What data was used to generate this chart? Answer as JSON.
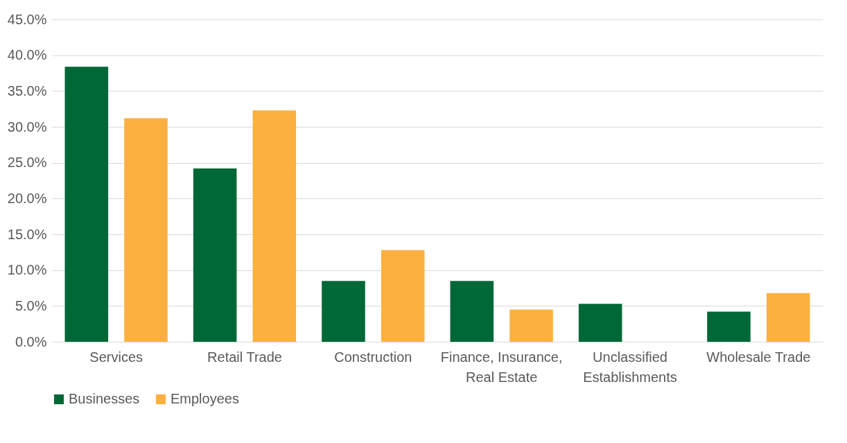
{
  "chart_data": {
    "type": "bar",
    "categories": [
      "Services",
      "Retail Trade",
      "Construction",
      "Finance, Insurance, Real Estate",
      "Unclassified Establishments",
      "Wholesale Trade"
    ],
    "series": [
      {
        "name": "Businesses",
        "color": "#006837",
        "values": [
          38.4,
          24.2,
          8.5,
          8.5,
          5.3,
          4.2
        ]
      },
      {
        "name": "Employees",
        "color": "#fbb040",
        "values": [
          31.2,
          32.3,
          12.8,
          4.5,
          0,
          6.8
        ]
      }
    ],
    "ylim": [
      0,
      45
    ],
    "yticks": [
      {
        "value": 0,
        "label": "0.0%"
      },
      {
        "value": 5,
        "label": "5.0%"
      },
      {
        "value": 10,
        "label": "10.0%"
      },
      {
        "value": 15,
        "label": "15.0%"
      },
      {
        "value": 20,
        "label": "20.0%"
      },
      {
        "value": 25,
        "label": "25.0%"
      },
      {
        "value": 30,
        "label": "30.0%"
      },
      {
        "value": 35,
        "label": "35.0%"
      },
      {
        "value": 40,
        "label": "40.0%"
      },
      {
        "value": 45,
        "label": "45.0%"
      }
    ],
    "grid": "y",
    "legend": "bottom"
  }
}
